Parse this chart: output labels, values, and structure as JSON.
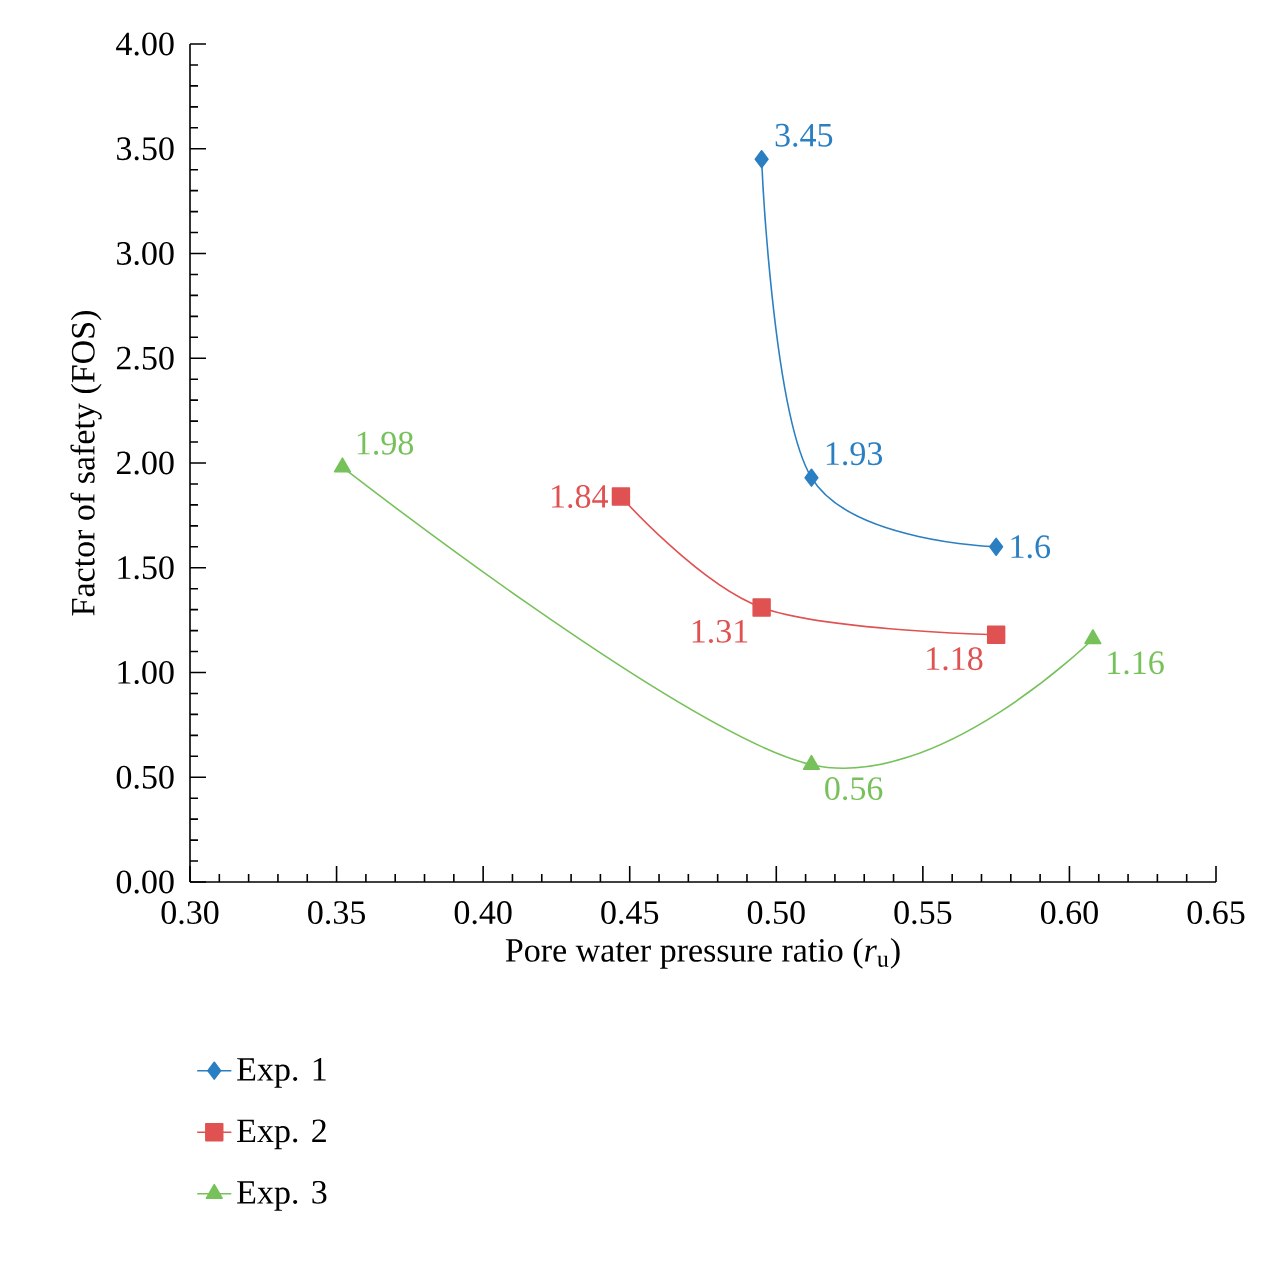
{
  "chart_data": {
    "type": "line",
    "xlabel": "Pore water pressure ratio (*r*$_{u}$)",
    "ylabel": "Factor of safety (FOS)",
    "xlim": [
      0.3,
      0.65
    ],
    "ylim": [
      0,
      4
    ],
    "xticks": [
      {
        "value": 0.3,
        "label": "0.30"
      },
      {
        "value": 0.35,
        "label": "0.35"
      },
      {
        "value": 0.4,
        "label": "0.40"
      },
      {
        "value": 0.45,
        "label": "0.45"
      },
      {
        "value": 0.5,
        "label": "0.50"
      },
      {
        "value": 0.55,
        "label": "0.55"
      },
      {
        "value": 0.6,
        "label": "0.60"
      },
      {
        "value": 0.65,
        "label": "0.65"
      }
    ],
    "yticks": [
      {
        "value": 0,
        "label": "0.00"
      },
      {
        "value": 0.5,
        "label": "0.50"
      },
      {
        "value": 1,
        "label": "1.00"
      },
      {
        "value": 1.5,
        "label": "1.50"
      },
      {
        "value": 2,
        "label": "2.00"
      },
      {
        "value": 2.5,
        "label": "2.50"
      },
      {
        "value": 3,
        "label": "3.00"
      },
      {
        "value": 3.5,
        "label": "3.50"
      },
      {
        "value": 4,
        "label": "4.00"
      }
    ],
    "grid": false,
    "legend": "bottom left",
    "data_labels": true,
    "series": [
      {
        "name": "Exp. 1",
        "color": "#2a7fc2",
        "marker": "diamond",
        "x": [
          0.495,
          0.512,
          0.575
        ],
        "values": [
          3.45,
          1.93,
          1.6
        ]
      },
      {
        "name": "Exp. 2",
        "color": "#e05252",
        "marker": "square",
        "x": [
          0.447,
          0.495,
          0.575
        ],
        "values": [
          1.84,
          1.31,
          1.18
        ]
      },
      {
        "name": "Exp. 3",
        "color": "#77c15a",
        "marker": "triangle",
        "x": [
          0.352,
          0.512,
          0.608
        ],
        "values": [
          1.98,
          0.56,
          1.16
        ]
      }
    ]
  }
}
